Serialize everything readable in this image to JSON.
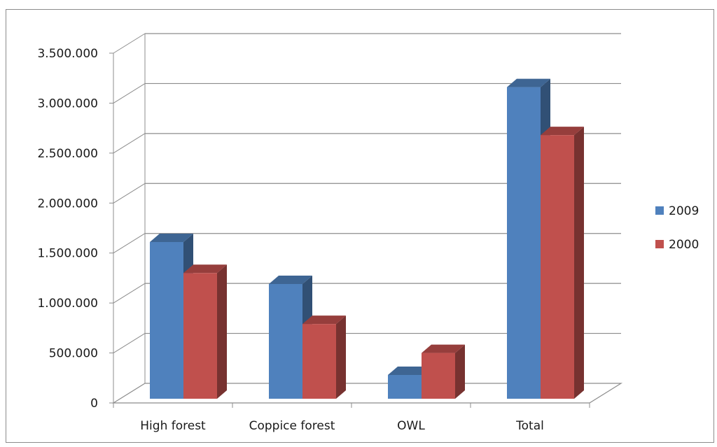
{
  "chart_data": {
    "type": "bar",
    "categories": [
      "High forest",
      "Coppice forest",
      "OWL",
      "Total"
    ],
    "series": [
      {
        "name": "2009",
        "color": "#4f81bd",
        "values": [
          1610000,
          1190000,
          280000,
          3160000
        ]
      },
      {
        "name": "2000",
        "color": "#c0504d",
        "values": [
          1300000,
          790000,
          500000,
          2680000
        ]
      }
    ],
    "ylim": [
      0,
      3500000
    ],
    "y_ticks": [
      0,
      500000,
      1000000,
      1500000,
      2000000,
      2500000,
      3000000,
      3500000
    ],
    "y_tick_labels": [
      "0",
      "500.000",
      "1.000.000",
      "1.500.000",
      "2.000.000",
      "2.500.000",
      "3.000.000",
      "3.500.000"
    ],
    "grid": true,
    "legend_position": "right",
    "style": "3d-clustered-column"
  }
}
